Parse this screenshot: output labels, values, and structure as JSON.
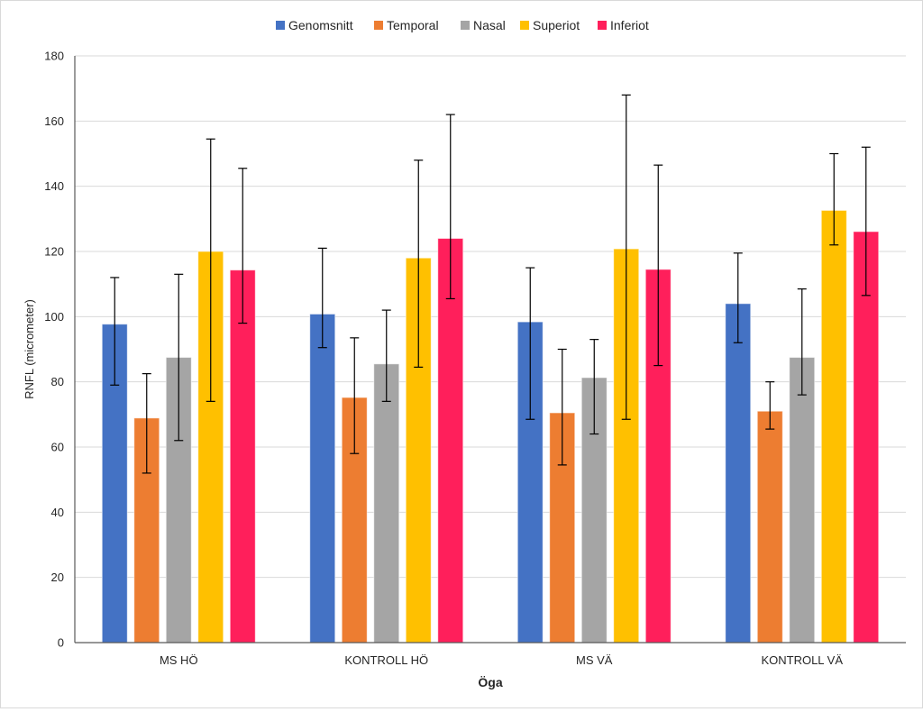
{
  "chart_data": {
    "type": "bar",
    "title": "",
    "xlabel": "Öga",
    "ylabel": "RNFL (micrometer)",
    "ylim": [
      0,
      180
    ],
    "ytick_step": 20,
    "grid": true,
    "legend_position": "top",
    "categories": [
      "MS HÖ",
      "KONTROLL HÖ",
      "MS VÄ",
      "KONTROLL VÄ"
    ],
    "series": [
      {
        "name": "Genomsnitt",
        "color": "#4472C4",
        "values": [
          97.7,
          100.8,
          98.4,
          104.0
        ],
        "error_low": [
          79.0,
          90.5,
          68.5,
          92.0
        ],
        "error_high": [
          112.0,
          121.0,
          115.0,
          119.5
        ]
      },
      {
        "name": "Temporal",
        "color": "#ED7D31",
        "values": [
          68.9,
          75.2,
          70.5,
          71.0
        ],
        "error_low": [
          52.0,
          58.0,
          54.5,
          65.5
        ],
        "error_high": [
          82.5,
          93.5,
          90.0,
          80.0
        ]
      },
      {
        "name": "Nasal",
        "color": "#A5A5A5",
        "values": [
          87.5,
          85.5,
          81.3,
          87.5
        ],
        "error_low": [
          62.0,
          74.0,
          64.0,
          76.0
        ],
        "error_high": [
          113.0,
          102.0,
          93.0,
          108.5
        ]
      },
      {
        "name": "Superiot",
        "color": "#FFC000",
        "values": [
          120.0,
          118.0,
          120.8,
          132.6
        ],
        "error_low": [
          74.0,
          84.5,
          68.5,
          122.0
        ],
        "error_high": [
          154.5,
          148.0,
          168.0,
          150.0
        ]
      },
      {
        "name": "Inferiot",
        "color": "#FF1F5B",
        "values": [
          114.3,
          124.0,
          114.5,
          126.1
        ],
        "error_low": [
          98.0,
          105.5,
          85.0,
          106.5
        ],
        "error_high": [
          145.5,
          162.0,
          146.5,
          152.0
        ]
      }
    ]
  }
}
